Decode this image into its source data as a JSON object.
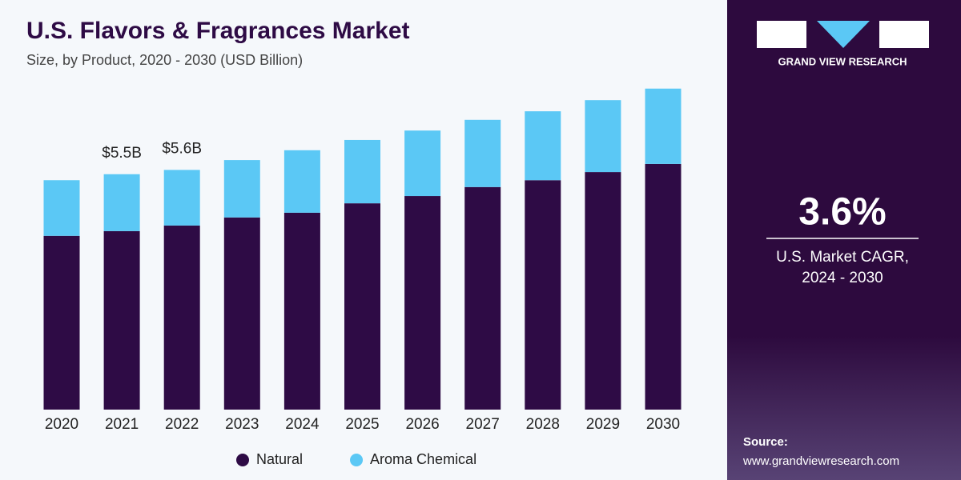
{
  "chart_data": {
    "type": "stacked_bar",
    "title": "U.S. Flavors & Fragrances Market",
    "subtitle": "Size, by Product, 2020 - 2030 (USD Billion)",
    "categories": [
      "2020",
      "2021",
      "2022",
      "2023",
      "2024",
      "2025",
      "2026",
      "2027",
      "2028",
      "2029",
      "2030"
    ],
    "series": [
      {
        "name": "Natural",
        "color": "#2e0b45",
        "values": [
          4.06,
          4.17,
          4.3,
          4.49,
          4.6,
          4.82,
          4.99,
          5.2,
          5.36,
          5.55,
          5.74
        ]
      },
      {
        "name": "Aroma Chemical",
        "color": "#5bc8f5",
        "values": [
          1.3,
          1.33,
          1.3,
          1.34,
          1.46,
          1.48,
          1.53,
          1.57,
          1.61,
          1.68,
          1.76
        ]
      }
    ],
    "annotations": [
      {
        "category": "2021",
        "value": 5.5,
        "label": "$5.5B"
      },
      {
        "category": "2022",
        "value": 5.6,
        "label": "$5.6B"
      }
    ],
    "legend": "bottom"
  },
  "panel": {
    "brand": "GRAND VIEW RESEARCH",
    "cagr": "3.6%",
    "cagr_label_1": "U.S. Market CAGR,",
    "cagr_label_2": "2024 - 2030",
    "source_label": "Source:",
    "source_url": "www.grandviewresearch.com"
  }
}
